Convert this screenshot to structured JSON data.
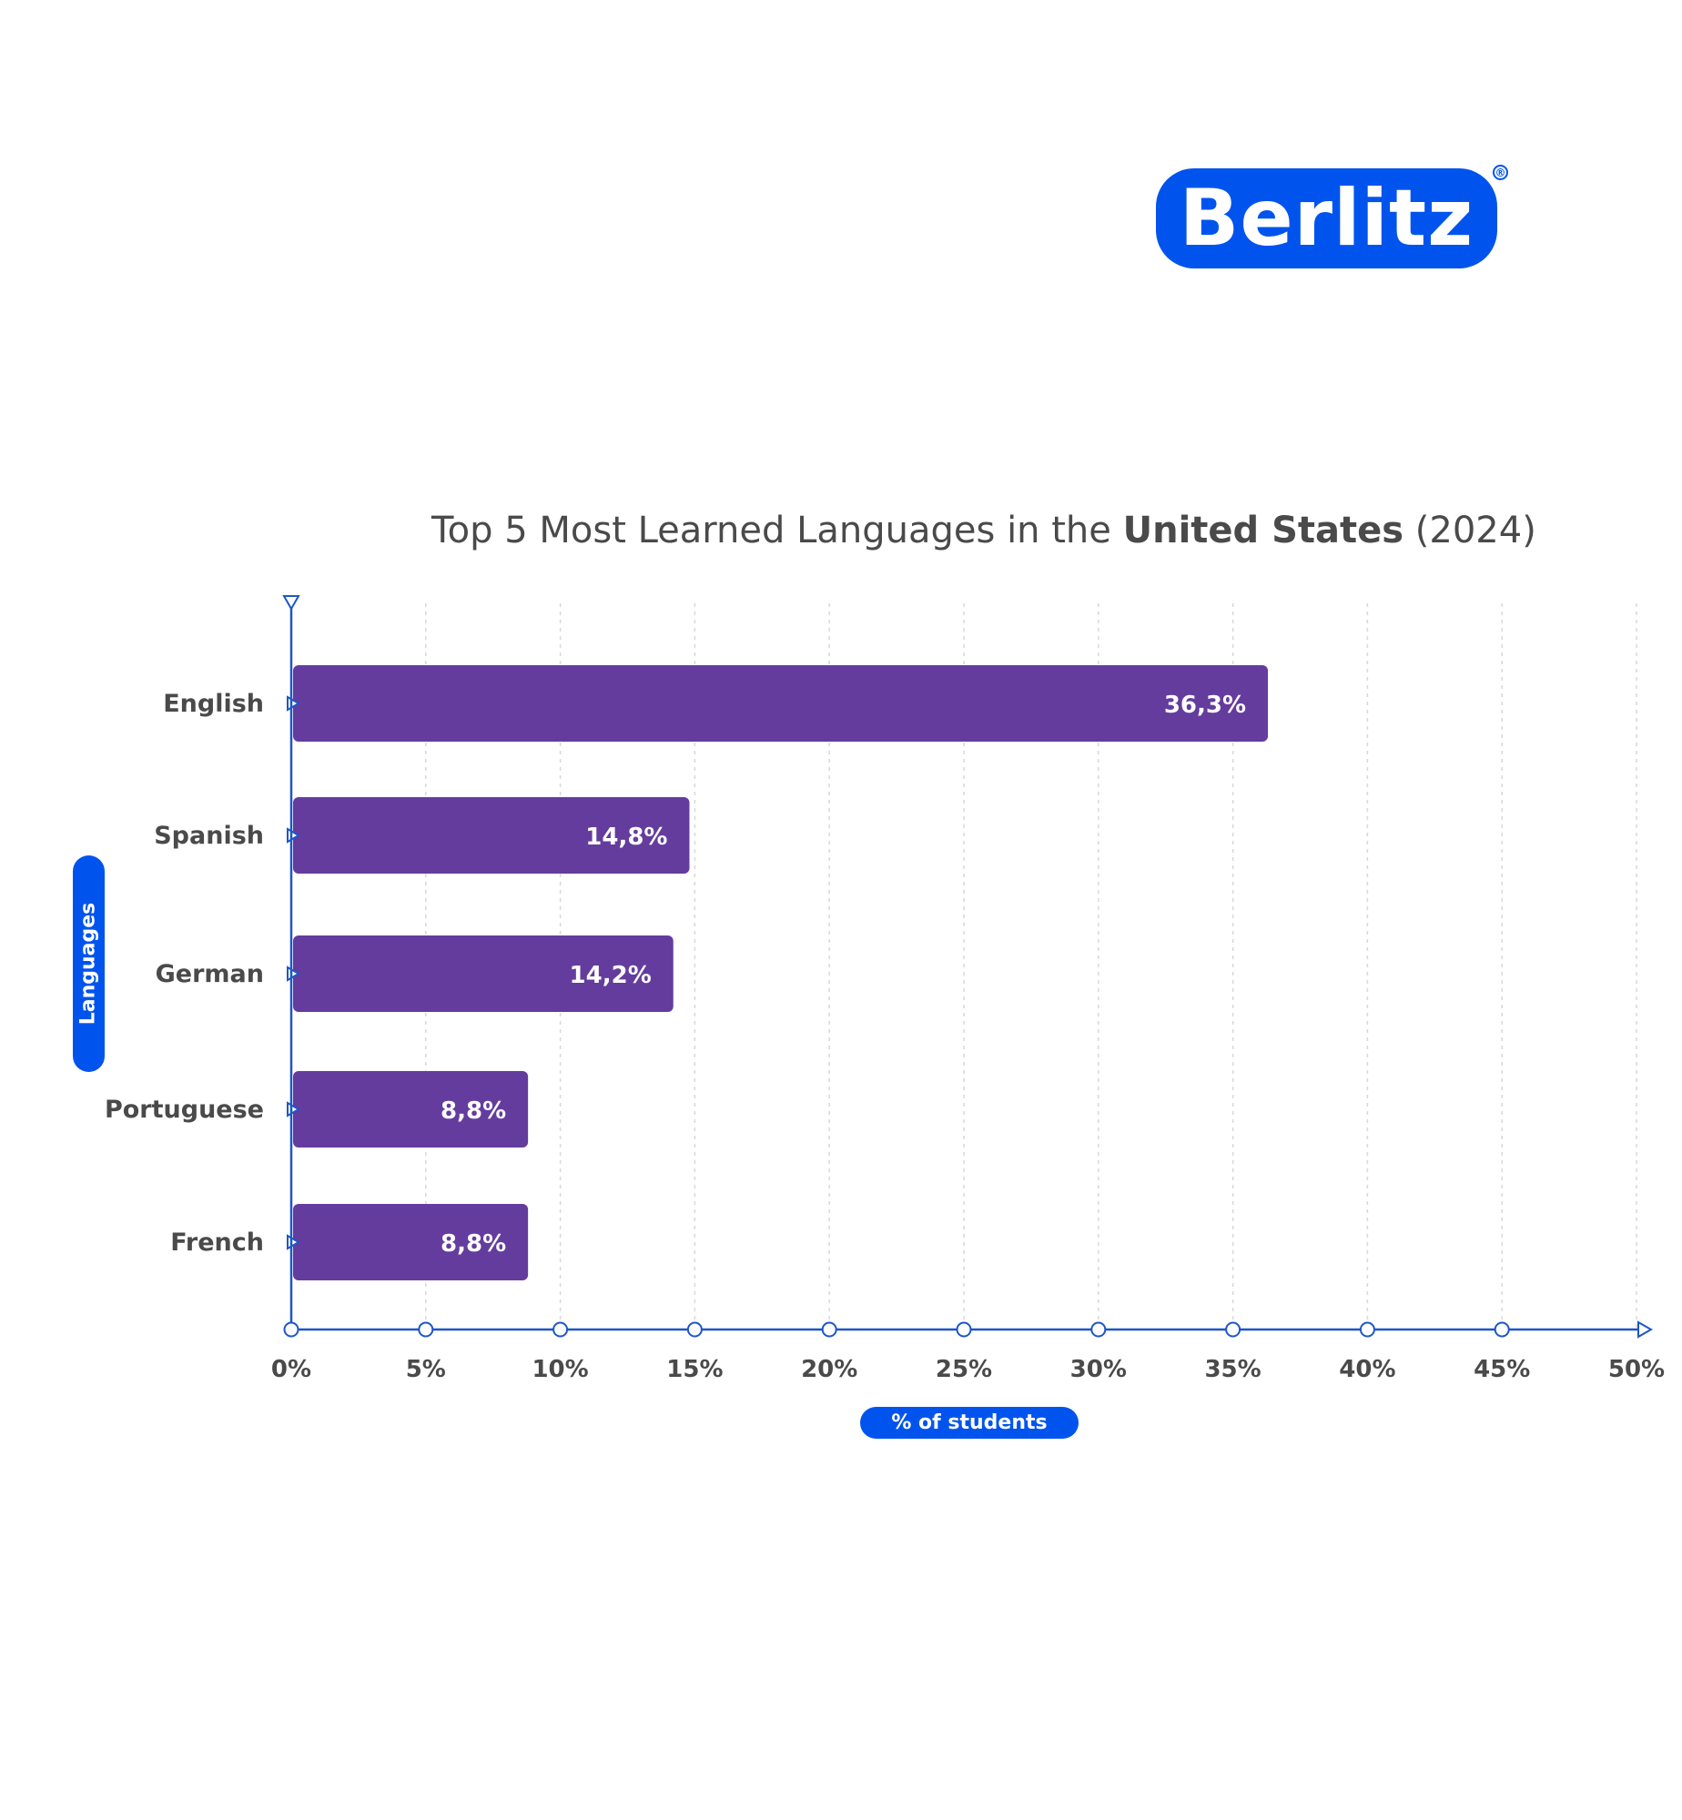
{
  "logo": {
    "text": "Berlitz",
    "reg_mark": "®"
  },
  "title": {
    "prefix": "Top 5 Most Learned Languages in the ",
    "bold": "United States",
    "suffix": " (2024)"
  },
  "colors": {
    "bar": "#643c9e",
    "axis": "#1e56c8",
    "accent": "#0054ed",
    "text": "#4a4a4a",
    "grid": "#d8d8d8"
  },
  "chart_data": {
    "type": "bar",
    "orientation": "horizontal",
    "title": "Top 5 Most Learned Languages in the United States (2024)",
    "categories": [
      "English",
      "Spanish",
      "German",
      "Portuguese",
      "French"
    ],
    "values": [
      36.3,
      14.8,
      14.2,
      8.8,
      8.8
    ],
    "value_labels": [
      "36,3%",
      "14,8%",
      "14,2%",
      "8,8%",
      "8,8%"
    ],
    "xlabel": "% of students",
    "ylabel": "Languages",
    "xlim": [
      0,
      50
    ],
    "x_ticks": [
      0,
      5,
      10,
      15,
      20,
      25,
      30,
      35,
      40,
      45,
      50
    ],
    "x_tick_labels": [
      "0%",
      "5%",
      "10%",
      "15%",
      "20%",
      "25%",
      "30%",
      "35%",
      "40%",
      "45%",
      "50%"
    ],
    "grid": "vertical dashed"
  }
}
